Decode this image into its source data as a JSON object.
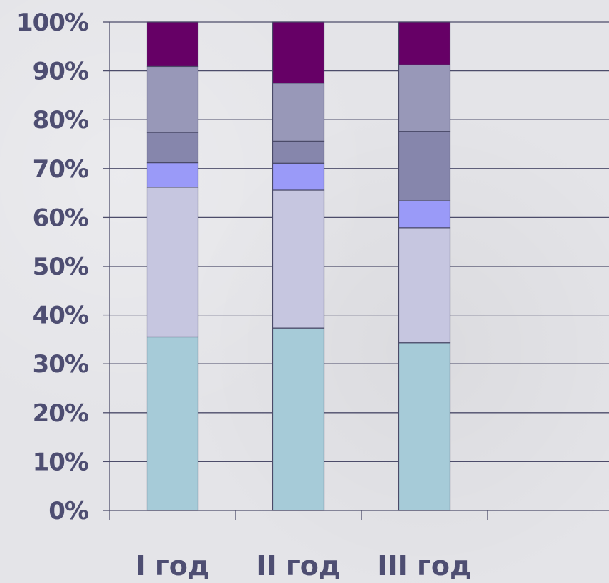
{
  "chart_data": {
    "type": "bar",
    "stacked": true,
    "percent": true,
    "categories": [
      "I год",
      "II год",
      "III год"
    ],
    "ylim": [
      0,
      100
    ],
    "y_ticks": [
      "0%",
      "10%",
      "20%",
      "30%",
      "40%",
      "50%",
      "60%",
      "70%",
      "80%",
      "90%",
      "100%"
    ],
    "grid": "horizontal",
    "legend": "none",
    "series": [
      {
        "color": "#a6cbd8",
        "values": [
          35.5,
          37.3,
          34.3
        ]
      },
      {
        "color": "#c6c6e0",
        "values": [
          30.7,
          28.3,
          23.6
        ]
      },
      {
        "color": "#9a9af8",
        "values": [
          5.0,
          5.5,
          5.5
        ]
      },
      {
        "color": "#8686ac",
        "values": [
          6.2,
          4.5,
          14.2
        ]
      },
      {
        "color": "#9898b8",
        "values": [
          13.5,
          11.9,
          13.6
        ]
      },
      {
        "color": "#660066",
        "values": [
          9.1,
          12.5,
          8.8
        ]
      }
    ]
  }
}
